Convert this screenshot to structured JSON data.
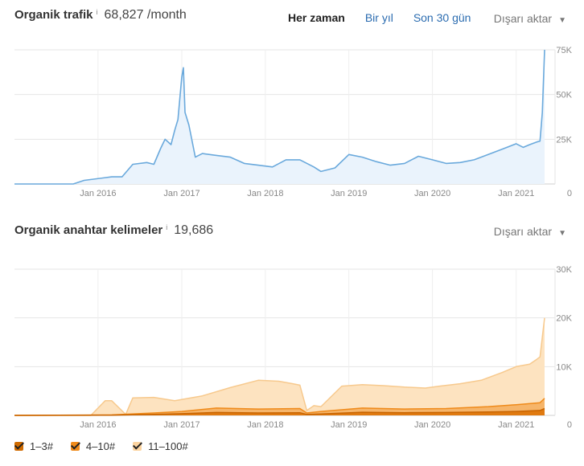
{
  "traffic": {
    "title": "Organik trafik",
    "info": "i",
    "value": "68,827 /month",
    "tabs": [
      {
        "label": "Her zaman",
        "active": true
      },
      {
        "label": "Bir yıl",
        "active": false
      },
      {
        "label": "Son 30 gün",
        "active": false
      }
    ],
    "export_label": "Dışarı aktar"
  },
  "keywords": {
    "title": "Organik anahtar kelimeler",
    "info": "i",
    "value": "19,686",
    "export_label": "Dışarı aktar"
  },
  "legend": [
    {
      "label": "1–3#",
      "color": "#d06b00"
    },
    {
      "label": "4–10#",
      "color": "#ef8a1a"
    },
    {
      "label": "11–100#",
      "color": "#fcd4a0"
    }
  ],
  "chart_data": [
    {
      "type": "area",
      "x_ticks": [
        "Jan 2016",
        "Jan 2017",
        "Jan 2018",
        "Jan 2019",
        "Jan 2020",
        "Jan 2021"
      ],
      "y_ticks": [
        "75K",
        "50K",
        "25K",
        "0"
      ],
      "ylim": [
        0,
        75000
      ],
      "color": "#6aa9dc",
      "fill": "#eaf3fc",
      "series": [
        {
          "x": [
            "2015-01-01",
            "2015-09-15",
            "2015-11-01",
            "2016-03-01",
            "2016-04-15",
            "2016-06-01",
            "2016-08-01",
            "2016-09-01",
            "2016-10-01",
            "2016-10-20",
            "2016-11-15",
            "2016-12-01",
            "2016-12-15",
            "2017-01-01",
            "2017-01-08",
            "2017-01-15",
            "2017-02-01",
            "2017-03-01",
            "2017-04-01",
            "2017-06-01",
            "2017-08-01",
            "2017-10-01",
            "2017-12-01",
            "2018-02-01",
            "2018-04-01",
            "2018-06-01",
            "2018-08-01",
            "2018-09-01",
            "2018-11-01",
            "2019-01-01",
            "2019-03-01",
            "2019-05-01",
            "2019-07-01",
            "2019-09-01",
            "2019-11-01",
            "2020-01-01",
            "2020-03-01",
            "2020-05-01",
            "2020-07-01",
            "2020-09-01",
            "2020-11-01",
            "2021-01-01",
            "2021-02-01",
            "2021-03-01",
            "2021-04-01",
            "2021-04-15",
            "2021-04-25",
            "2021-05-05"
          ],
          "y": [
            0,
            0,
            2000,
            4000,
            4000,
            11000,
            12000,
            11000,
            20000,
            25000,
            22000,
            30000,
            36000,
            60000,
            65000,
            40000,
            33000,
            15000,
            17000,
            16000,
            15000,
            11500,
            10500,
            9500,
            13500,
            13500,
            9500,
            7000,
            9000,
            16500,
            15000,
            12500,
            10500,
            11500,
            15500,
            13500,
            11500,
            12000,
            13500,
            16500,
            19500,
            22500,
            20500,
            22000,
            23500,
            24000,
            40000,
            75000
          ]
        }
      ]
    },
    {
      "type": "area",
      "x_ticks": [
        "Jan 2016",
        "Jan 2017",
        "Jan 2018",
        "Jan 2019",
        "Jan 2020",
        "Jan 2021"
      ],
      "y_ticks": [
        "30K",
        "20K",
        "10K",
        "0"
      ],
      "ylim": [
        0,
        30000
      ],
      "series": [
        {
          "name": "11–100#",
          "x": [
            "2015-01-01",
            "2015-12-01",
            "2016-02-01",
            "2016-03-01",
            "2016-05-01",
            "2016-06-01",
            "2016-09-01",
            "2016-12-01",
            "2017-04-01",
            "2017-08-01",
            "2017-12-01",
            "2018-03-01",
            "2018-05-01",
            "2018-06-01",
            "2018-07-01",
            "2018-08-01",
            "2018-09-01",
            "2018-12-01",
            "2019-03-01",
            "2019-06-01",
            "2019-09-01",
            "2019-12-01",
            "2020-02-01",
            "2020-05-01",
            "2020-08-01",
            "2020-11-01",
            "2021-01-01",
            "2021-03-01",
            "2021-04-01",
            "2021-04-15",
            "2021-05-05"
          ],
          "y": [
            0,
            0,
            3000,
            3000,
            200,
            3600,
            3700,
            3000,
            4000,
            5700,
            7200,
            7000,
            6500,
            6200,
            1000,
            2000,
            1800,
            6000,
            6300,
            6100,
            5800,
            5600,
            6000,
            6500,
            7200,
            8800,
            10000,
            10500,
            11500,
            12000,
            20000
          ]
        },
        {
          "name": "4–10#",
          "x": [
            "2015-01-01",
            "2016-03-01",
            "2016-09-01",
            "2017-01-01",
            "2017-06-01",
            "2017-12-01",
            "2018-06-01",
            "2018-07-01",
            "2018-09-01",
            "2019-03-01",
            "2019-09-01",
            "2020-03-01",
            "2020-09-01",
            "2021-01-01",
            "2021-04-15",
            "2021-05-05"
          ],
          "y": [
            0,
            100,
            500,
            800,
            1500,
            1300,
            1400,
            500,
            800,
            1500,
            1300,
            1400,
            1800,
            2200,
            2600,
            3500
          ]
        },
        {
          "name": "1–3#",
          "x": [
            "2015-01-01",
            "2016-03-01",
            "2016-09-01",
            "2017-01-01",
            "2017-06-01",
            "2017-12-01",
            "2018-06-01",
            "2018-07-01",
            "2018-09-01",
            "2019-03-01",
            "2019-09-01",
            "2020-03-01",
            "2020-09-01",
            "2021-01-01",
            "2021-04-15",
            "2021-05-05"
          ],
          "y": [
            0,
            50,
            200,
            350,
            600,
            500,
            550,
            200,
            300,
            650,
            550,
            600,
            700,
            800,
            1000,
            1400
          ]
        }
      ]
    }
  ]
}
